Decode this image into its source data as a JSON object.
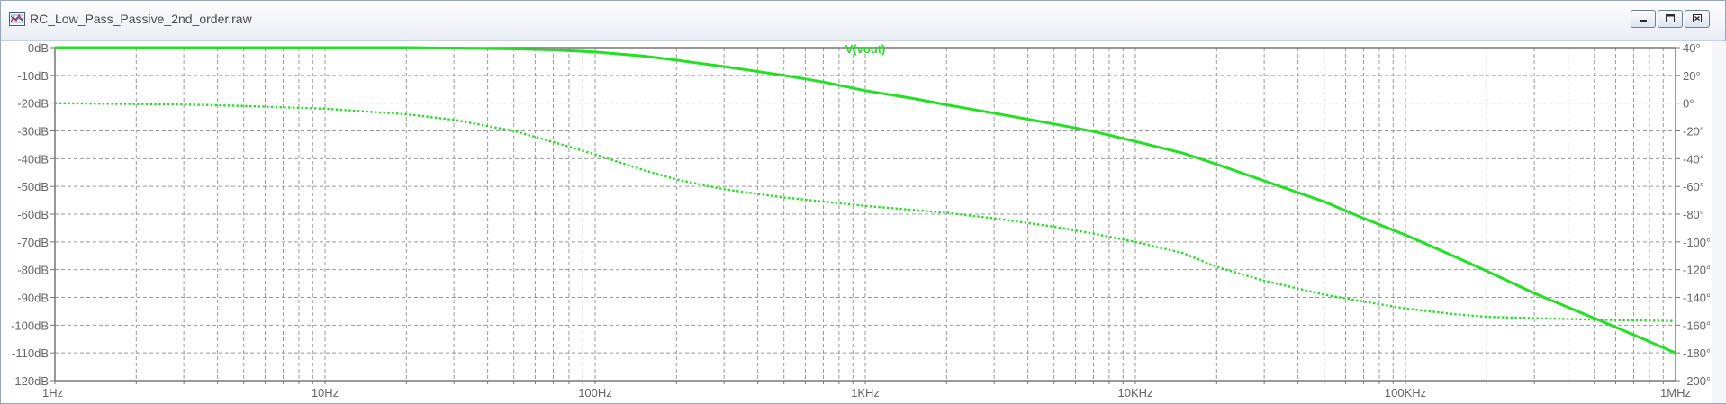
{
  "window": {
    "title": "RC_Low_Pass_Passive_2nd_order.raw",
    "icon": "waveform-viewer-icon",
    "buttons": {
      "minimize": "minimize-icon",
      "restore": "restore-icon",
      "close": "close-icon"
    }
  },
  "colors": {
    "trace": "#22e022",
    "grid": "#9a9a9a",
    "axis_text": "#666666",
    "frame": "#777777"
  },
  "chart_data": {
    "type": "line",
    "title": "V(vout)",
    "x_scale": "log",
    "xlim": [
      1,
      1000000
    ],
    "x_tick_labels": [
      {
        "value": 1,
        "label": "1Hz"
      },
      {
        "value": 10,
        "label": "10Hz"
      },
      {
        "value": 100,
        "label": "100Hz"
      },
      {
        "value": 1000,
        "label": "1KHz"
      },
      {
        "value": 10000,
        "label": "10KHz"
      },
      {
        "value": 100000,
        "label": "100KHz"
      },
      {
        "value": 1000000,
        "label": "1MHz"
      }
    ],
    "y_left": {
      "unit": "dB",
      "lim": [
        -120,
        0
      ],
      "tick_labels": [
        {
          "value": 0,
          "label": "0dB"
        },
        {
          "value": -10,
          "label": "-10dB"
        },
        {
          "value": -20,
          "label": "-20dB"
        },
        {
          "value": -30,
          "label": "-30dB"
        },
        {
          "value": -40,
          "label": "-40dB"
        },
        {
          "value": -50,
          "label": "-50dB"
        },
        {
          "value": -60,
          "label": "-60dB"
        },
        {
          "value": -70,
          "label": "-70dB"
        },
        {
          "value": -80,
          "label": "-80dB"
        },
        {
          "value": -90,
          "label": "-90dB"
        },
        {
          "value": -100,
          "label": "-100dB"
        },
        {
          "value": -110,
          "label": "-110dB"
        },
        {
          "value": -120,
          "label": "-120dB"
        }
      ]
    },
    "y_right": {
      "unit": "°",
      "lim": [
        -200,
        40
      ],
      "tick_labels": [
        {
          "value": 40,
          "label": "40°"
        },
        {
          "value": 20,
          "label": "20°"
        },
        {
          "value": 0,
          "label": "0°"
        },
        {
          "value": -20,
          "label": "-20°"
        },
        {
          "value": -40,
          "label": "-40°"
        },
        {
          "value": -60,
          "label": "-60°"
        },
        {
          "value": -80,
          "label": "-80°"
        },
        {
          "value": -100,
          "label": "-100°"
        },
        {
          "value": -120,
          "label": "-120°"
        },
        {
          "value": -140,
          "label": "-140°"
        },
        {
          "value": -160,
          "label": "-160°"
        },
        {
          "value": -180,
          "label": "-180°"
        },
        {
          "value": -200,
          "label": "-200°"
        }
      ]
    },
    "grid": true,
    "series": [
      {
        "axis": "left",
        "style": "solid",
        "x": [
          1,
          10,
          20,
          30,
          50,
          70,
          100,
          150,
          200,
          300,
          500,
          700,
          1000,
          1500,
          2000,
          3000,
          5000,
          7000,
          10000,
          15000,
          20000,
          30000,
          50000,
          70000,
          100000,
          150000,
          200000,
          300000,
          500000,
          700000,
          1000000
        ],
        "y": [
          0,
          0,
          0,
          -0.2,
          -0.5,
          -0.8,
          -1.6,
          -3,
          -4.5,
          -6.8,
          -10,
          -12.4,
          -15.5,
          -18.3,
          -20.6,
          -23.6,
          -27.5,
          -30.2,
          -33.8,
          -38,
          -42,
          -48,
          -55.5,
          -61.5,
          -67.5,
          -75,
          -80.5,
          -88.5,
          -97.5,
          -103.5,
          -110
        ]
      },
      {
        "axis": "right",
        "style": "dotted",
        "x": [
          1,
          3,
          5,
          10,
          20,
          30,
          50,
          70,
          100,
          150,
          200,
          300,
          500,
          700,
          1000,
          2000,
          3000,
          5000,
          7000,
          10000,
          15000,
          20000,
          30000,
          50000,
          70000,
          100000,
          150000,
          200000,
          300000,
          500000,
          1000000
        ],
        "y": [
          0,
          -1,
          -2,
          -4,
          -8,
          -12,
          -20,
          -28,
          -37,
          -48,
          -55,
          -62,
          -68,
          -71,
          -74,
          -79,
          -83,
          -89,
          -94,
          -100,
          -108,
          -118,
          -128,
          -138,
          -143,
          -148,
          -152,
          -154,
          -155,
          -156,
          -157
        ]
      }
    ]
  }
}
